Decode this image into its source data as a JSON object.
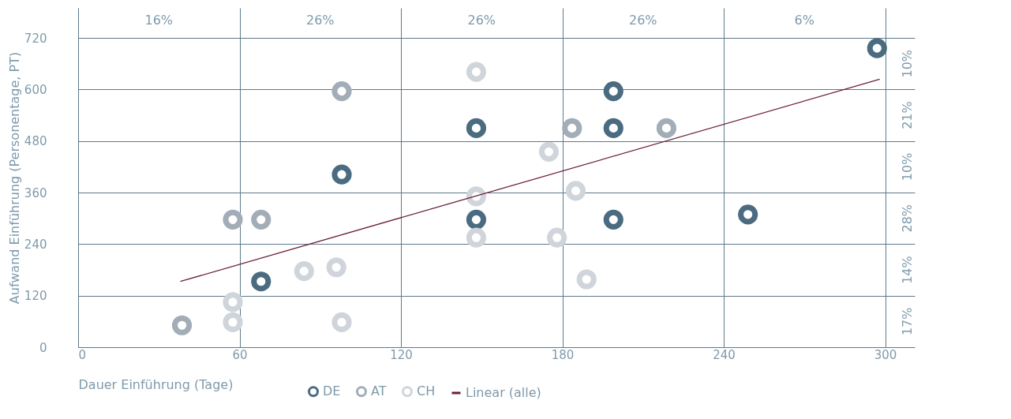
{
  "chart_data": {
    "type": "scatter",
    "xlabel": "Dauer Einführung (Tage)",
    "ylabel": "Aufwand Einführung (Personentage, PT)",
    "xlim": [
      0,
      311
    ],
    "ylim": [
      0,
      790
    ],
    "xticks": [
      0,
      60,
      120,
      180,
      240,
      300
    ],
    "yticks": [
      0,
      120,
      240,
      360,
      480,
      600,
      720
    ],
    "grid": true,
    "legend": "bottom",
    "marker": "circle",
    "series": [
      {
        "name": "DE",
        "color": "#4a6b80",
        "x": [
          297,
          199,
          148,
          199,
          98,
          148,
          199,
          249,
          68
        ],
        "values": [
          696,
          596,
          510,
          510,
          402,
          297,
          297,
          309,
          153
        ]
      },
      {
        "name": "AT",
        "color": "#a3adb8",
        "x": [
          57.5,
          68,
          98,
          183.6,
          218.7,
          38.6
        ],
        "values": [
          297,
          297,
          596,
          510,
          510,
          51
        ]
      },
      {
        "name": "CH",
        "color": "#cfd5db",
        "x": [
          148,
          175,
          185,
          148,
          148,
          178,
          189,
          84,
          96,
          57.5,
          57.5,
          98
        ],
        "values": [
          641,
          455,
          364,
          351,
          255,
          255,
          158,
          177,
          186,
          105,
          58,
          58
        ]
      },
      {
        "name": "Linear (alle)",
        "type": "line",
        "marker": "none",
        "color": "#6b1f3a",
        "x": [
          38,
          298
        ],
        "values": [
          153,
          624
        ]
      }
    ],
    "annotations": [
      "16%",
      "26%",
      "26%",
      "26%",
      "6%",
      "10%",
      "21%",
      "10%",
      "28%",
      "14%",
      "17%"
    ]
  }
}
